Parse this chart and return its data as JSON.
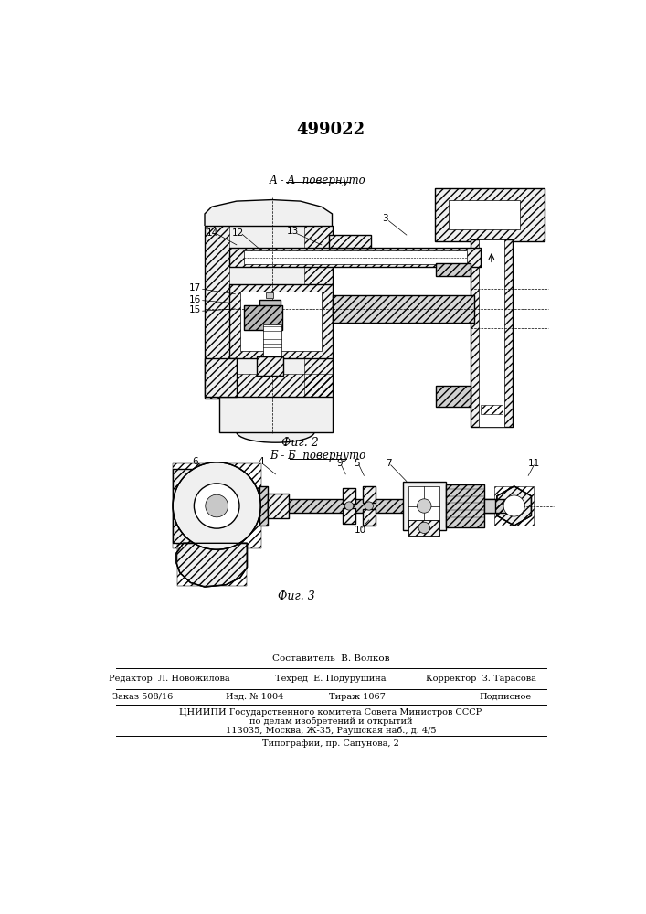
{
  "patent_number": "499022",
  "background_color": "#ffffff",
  "fig_width": 7.07,
  "fig_height": 10.0,
  "dpi": 100,
  "fig2_label": "А - А  повернуто",
  "fig3_label": "Б - Б  повернуто",
  "fig2_caption": "Фиг. 2",
  "fig3_caption": "Фиг. 3",
  "footer_line1": "Составитель  В. Волков",
  "footer_line2_left": "Редактор  Л. Новожилова",
  "footer_line2_mid": "Техред  Е. Подурушина",
  "footer_line2_right": "Корректор  З. Тарасова",
  "footer_line3_left": "Заказ 508/16",
  "footer_line3_mid1": "Изд. № 1004",
  "footer_line3_mid2": "Тираж 1067",
  "footer_line3_right": "Подписное",
  "footer_line4": "ЦНИИПИ Государственного комитета Совета Министров СССР",
  "footer_line5": "по делам изобретений и открытий",
  "footer_line6": "113035, Москва, Ж-35, Раушская наб., д. 4/5",
  "footer_line7": "Типографии, пр. Сапунова, 2",
  "lc": "#000000",
  "lw_main": 1.0,
  "lw_thin": 0.5,
  "lw_thick": 1.5,
  "hatch_45": "////",
  "fc_hatch": "#e8e8e8",
  "fc_white": "#ffffff",
  "fc_light": "#f0f0f0"
}
